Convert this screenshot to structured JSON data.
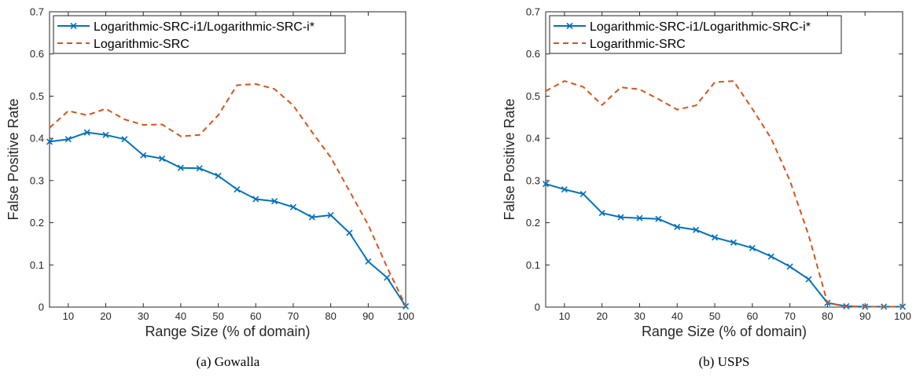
{
  "chart_data": [
    {
      "type": "line",
      "caption": "(a) Gowalla",
      "xlabel": "Range Size (% of domain)",
      "ylabel": "False Positive Rate",
      "xlim": [
        5,
        100
      ],
      "ylim": [
        0,
        0.7
      ],
      "xticks": [
        10,
        20,
        30,
        40,
        50,
        60,
        70,
        80,
        90,
        100
      ],
      "yticks": [
        0,
        0.1,
        0.2,
        0.3,
        0.4,
        0.5,
        0.6,
        0.7
      ],
      "legend_position": "top-left",
      "series": [
        {
          "name": "Logarithmic-SRC-i1/Logarithmic-SRC-i*",
          "color": "#0072bd",
          "style": "solid-x-markers",
          "x": [
            5,
            10,
            15,
            20,
            25,
            30,
            35,
            40,
            45,
            50,
            55,
            60,
            65,
            70,
            75,
            80,
            85,
            90,
            95,
            100
          ],
          "y": [
            0.392,
            0.398,
            0.414,
            0.408,
            0.398,
            0.36,
            0.352,
            0.33,
            0.329,
            0.311,
            0.279,
            0.256,
            0.251,
            0.237,
            0.213,
            0.218,
            0.176,
            0.108,
            0.07,
            0.002
          ]
        },
        {
          "name": "Logarithmic-SRC",
          "color": "#d95319",
          "style": "dashed",
          "x": [
            5,
            10,
            15,
            20,
            25,
            30,
            35,
            40,
            45,
            50,
            55,
            60,
            65,
            70,
            75,
            80,
            85,
            90,
            95,
            100
          ],
          "y": [
            0.425,
            0.465,
            0.455,
            0.47,
            0.445,
            0.432,
            0.433,
            0.405,
            0.408,
            0.455,
            0.526,
            0.529,
            0.517,
            0.478,
            0.415,
            0.355,
            0.275,
            0.195,
            0.095,
            0.003
          ]
        }
      ]
    },
    {
      "type": "line",
      "caption": "(b) USPS",
      "xlabel": "Range Size (% of domain)",
      "ylabel": "False Positive Rate",
      "xlim": [
        5,
        100
      ],
      "ylim": [
        0,
        0.7
      ],
      "xticks": [
        10,
        20,
        30,
        40,
        50,
        60,
        70,
        80,
        90,
        100
      ],
      "yticks": [
        0,
        0.1,
        0.2,
        0.3,
        0.4,
        0.5,
        0.6,
        0.7
      ],
      "legend_position": "top-left",
      "series": [
        {
          "name": "Logarithmic-SRC-i1/Logarithmic-SRC-i*",
          "color": "#0072bd",
          "style": "solid-x-markers",
          "x": [
            5,
            10,
            15,
            20,
            25,
            30,
            35,
            40,
            45,
            50,
            55,
            60,
            65,
            70,
            75,
            80,
            85,
            90,
            95,
            100
          ],
          "y": [
            0.292,
            0.279,
            0.268,
            0.223,
            0.213,
            0.211,
            0.209,
            0.19,
            0.183,
            0.165,
            0.153,
            0.14,
            0.12,
            0.096,
            0.066,
            0.01,
            0.002,
            0.001,
            0.001,
            0.001
          ]
        },
        {
          "name": "Logarithmic-SRC",
          "color": "#d95319",
          "style": "dashed",
          "x": [
            5,
            10,
            15,
            20,
            25,
            30,
            35,
            40,
            45,
            50,
            55,
            60,
            65,
            70,
            75,
            80,
            85,
            90,
            95,
            100
          ],
          "y": [
            0.512,
            0.536,
            0.522,
            0.479,
            0.521,
            0.516,
            0.493,
            0.468,
            0.478,
            0.533,
            0.536,
            0.47,
            0.4,
            0.3,
            0.17,
            0.01,
            0.001,
            0.001,
            0.001,
            0.001
          ]
        }
      ]
    }
  ]
}
